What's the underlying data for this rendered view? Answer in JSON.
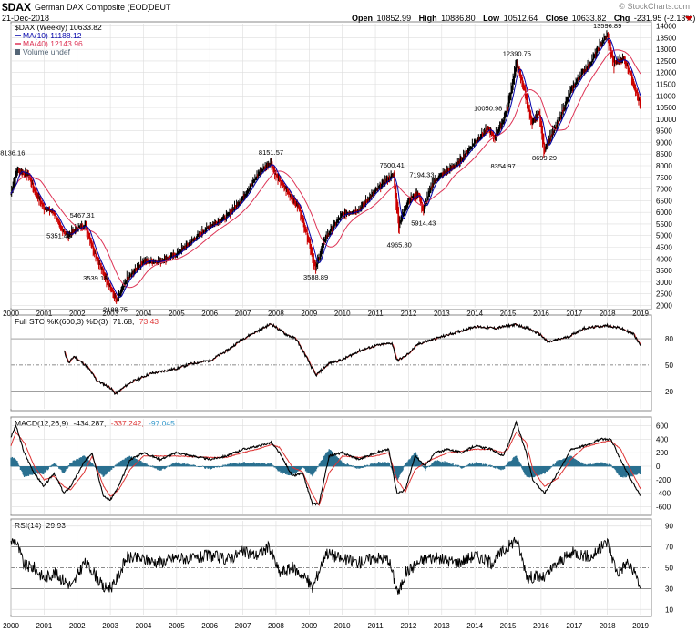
{
  "header": {
    "symbol": "$DAX",
    "name": "German DAX Composite (EOD)",
    "exchange": "DEUT",
    "date": "21-Dec-2018",
    "copyright": "© StockCharts.com",
    "open_label": "Open",
    "open": "10852.99",
    "high_label": "High",
    "high": "10886.80",
    "low_label": "Low",
    "low": "10512.64",
    "close_label": "Close",
    "close": "10633.82",
    "chg_label": "Chg",
    "chg": "-231.95 (-2.13%)"
  },
  "legend": {
    "price": "$DAX (Weekly) 10633.82",
    "ma10": "MA(10) 11188.12",
    "ma40": "MA(40) 12143.96",
    "volume": "Volume undef"
  },
  "indicators": {
    "sto_label": "Full STO %K(600,3) %D(3)",
    "sto_k": "71.68,",
    "sto_d": "73.43",
    "macd_label": "MACD(12,26,9)",
    "macd_v": "-434.287,",
    "macd_sig": "-337.242,",
    "macd_hist": "-97.045",
    "rsi_label": "RSI(14)",
    "rsi_v": "29.93"
  },
  "colors": {
    "price": "#000000",
    "down": "#cc0000",
    "ma10": "#0000aa",
    "ma40": "#dd3355",
    "macd_signal": "#dd3333",
    "histogram": "#2a7090",
    "hist_label": "#3399cc",
    "grid": "#dddddd"
  },
  "chart_data": {
    "type": "line",
    "title": "$DAX German DAX Composite (EOD) DEUT",
    "x_ticks": [
      "2000",
      "2001",
      "2002",
      "2003",
      "2004",
      "2005",
      "2006",
      "2007",
      "2008",
      "2009",
      "2010",
      "2011",
      "2012",
      "2013",
      "2014",
      "2015",
      "2016",
      "2017",
      "2018",
      "2019"
    ],
    "price_ticks": [
      "2000",
      "2500",
      "3000",
      "3500",
      "4000",
      "4500",
      "5000",
      "5500",
      "6000",
      "6500",
      "7000",
      "7500",
      "8000",
      "8500",
      "9000",
      "9500",
      "10000",
      "10500",
      "11000",
      "11500",
      "12000",
      "12500",
      "13000",
      "13500",
      "14000"
    ],
    "ylim": [
      1900,
      14100
    ],
    "series": [
      {
        "name": "$DAX (Weekly)",
        "x": [
          2000.0,
          2000.2,
          2000.55,
          2000.7,
          2001.0,
          2001.3,
          2001.5,
          2001.72,
          2002.0,
          2002.25,
          2002.5,
          2002.75,
          2003.0,
          2003.2,
          2003.5,
          2004.0,
          2004.5,
          2005.0,
          2005.5,
          2006.0,
          2006.5,
          2007.0,
          2007.5,
          2007.85,
          2008.0,
          2008.4,
          2008.7,
          2009.0,
          2009.2,
          2009.5,
          2010.0,
          2010.5,
          2011.0,
          2011.35,
          2011.55,
          2011.72,
          2012.0,
          2012.3,
          2012.45,
          2012.75,
          2013.0,
          2013.5,
          2014.0,
          2014.4,
          2014.6,
          2014.85,
          2015.0,
          2015.27,
          2015.5,
          2015.73,
          2015.95,
          2016.1,
          2016.5,
          2016.9,
          2017.2,
          2017.5,
          2017.8,
          2018.0,
          2018.2,
          2018.5,
          2018.7,
          2018.85,
          2019.0
        ],
        "values": [
          6800,
          7800,
          7600,
          7000,
          6200,
          6000,
          5351,
          5000,
          5300,
          5467,
          4400,
          3539,
          2800,
          2189,
          3100,
          3900,
          3900,
          4200,
          4800,
          5400,
          5800,
          6600,
          7700,
          8152,
          7600,
          6800,
          6200,
          4800,
          3589,
          4900,
          5900,
          6100,
          6900,
          7400,
          7600,
          5500,
          6500,
          6800,
          6100,
          7300,
          7600,
          8100,
          9000,
          9600,
          9200,
          9900,
          10500,
          12391,
          11300,
          9800,
          10300,
          8700,
          9800,
          11200,
          11900,
          12400,
          13200,
          13597,
          12400,
          12600,
          12000,
          11300,
          10634
        ]
      },
      {
        "name": "MA(10)",
        "values": []
      },
      {
        "name": "MA(40)",
        "values": []
      }
    ],
    "annotations": [
      "8136.16",
      "5467.31",
      "5351.48",
      "3539.18",
      "2188.75",
      "8151.57",
      "3588.89",
      "7600.41",
      "7194.33",
      "5914.43",
      "4965.80",
      "10050.98",
      "12390.75",
      "8354.97",
      "8699.29",
      "13596.89"
    ],
    "stochastic": {
      "ticks": [
        "20",
        "50",
        "80"
      ],
      "x": [
        2001.6,
        2001.75,
        2001.9,
        2002.3,
        2002.6,
        2003.0,
        2003.15,
        2003.6,
        2004.2,
        2005.0,
        2005.5,
        2006.0,
        2006.5,
        2007.0,
        2007.6,
        2007.85,
        2008.3,
        2008.6,
        2008.9,
        2009.2,
        2009.6,
        2010.0,
        2010.5,
        2011.0,
        2011.5,
        2011.65,
        2011.9,
        2012.3,
        2012.8,
        2013.5,
        2014.0,
        2014.6,
        2015.2,
        2015.6,
        2016.0,
        2016.2,
        2016.8,
        2017.3,
        2018.0,
        2018.4,
        2018.8,
        2019.0
      ],
      "values": [
        66,
        52,
        60,
        48,
        32,
        24,
        17,
        30,
        40,
        46,
        52,
        55,
        66,
        80,
        92,
        97,
        85,
        80,
        60,
        38,
        52,
        56,
        66,
        72,
        75,
        55,
        60,
        74,
        80,
        88,
        94,
        92,
        96,
        92,
        84,
        76,
        82,
        92,
        95,
        92,
        85,
        72
      ]
    },
    "macd": {
      "ticks": [
        "-600",
        "-400",
        "-200",
        "0",
        "200",
        "400",
        "600"
      ],
      "macd_x": [
        2000.0,
        2000.15,
        2000.4,
        2000.7,
        2001.0,
        2001.3,
        2001.6,
        2001.8,
        2002.2,
        2002.45,
        2002.8,
        2003.0,
        2003.25,
        2003.6,
        2004.0,
        2004.5,
        2005.0,
        2006.0,
        2006.5,
        2007.0,
        2007.5,
        2007.85,
        2008.1,
        2008.5,
        2008.8,
        2009.1,
        2009.3,
        2009.6,
        2010.0,
        2010.5,
        2011.0,
        2011.4,
        2011.65,
        2011.9,
        2012.2,
        2012.5,
        2012.8,
        2013.2,
        2013.6,
        2014.0,
        2014.5,
        2014.85,
        2015.0,
        2015.25,
        2015.55,
        2015.75,
        2016.1,
        2016.5,
        2016.9,
        2017.3,
        2017.8,
        2018.1,
        2018.4,
        2018.7,
        2019.0
      ],
      "macd_values": [
        430,
        600,
        200,
        -100,
        -300,
        -100,
        -400,
        -300,
        50,
        200,
        -450,
        -500,
        -300,
        100,
        200,
        100,
        200,
        100,
        150,
        250,
        300,
        350,
        200,
        -150,
        -100,
        -560,
        -550,
        150,
        200,
        100,
        200,
        250,
        -400,
        -350,
        150,
        0,
        200,
        250,
        200,
        300,
        250,
        150,
        300,
        650,
        200,
        -200,
        -400,
        -100,
        250,
        300,
        400,
        400,
        100,
        -200,
        -434
      ],
      "signal_values": [
        300,
        500,
        350,
        0,
        -200,
        -150,
        -300,
        -350,
        -100,
        150,
        -300,
        -450,
        -350,
        -50,
        150,
        150,
        150,
        130,
        130,
        200,
        260,
        320,
        280,
        -20,
        -80,
        -420,
        -580,
        -100,
        150,
        130,
        150,
        200,
        -200,
        -380,
        -50,
        50,
        120,
        200,
        220,
        250,
        250,
        200,
        250,
        500,
        350,
        -50,
        -300,
        -180,
        100,
        280,
        350,
        380,
        250,
        -50,
        -337
      ]
    },
    "rsi": {
      "ticks": [
        "10",
        "30",
        "50",
        "70",
        "90"
      ],
      "x": [
        2000.0,
        2000.15,
        2000.4,
        2000.7,
        2001.0,
        2001.3,
        2001.6,
        2001.85,
        2002.2,
        2002.45,
        2002.8,
        2003.1,
        2003.5,
        2004.0,
        2004.5,
        2005.0,
        2005.5,
        2006.0,
        2006.5,
        2007.0,
        2007.4,
        2007.8,
        2008.1,
        2008.5,
        2008.9,
        2009.1,
        2009.5,
        2010.0,
        2010.5,
        2011.0,
        2011.4,
        2011.6,
        2011.7,
        2011.9,
        2012.3,
        2012.6,
        2013.0,
        2013.5,
        2014.0,
        2014.5,
        2015.0,
        2015.25,
        2015.6,
        2015.8,
        2016.1,
        2016.5,
        2017.0,
        2017.5,
        2018.0,
        2018.3,
        2018.6,
        2018.9,
        2019.0
      ],
      "values": [
        75,
        76,
        52,
        50,
        40,
        45,
        38,
        32,
        55,
        48,
        30,
        33,
        60,
        58,
        55,
        60,
        58,
        62,
        58,
        65,
        62,
        70,
        45,
        50,
        40,
        30,
        65,
        58,
        55,
        60,
        58,
        35,
        25,
        45,
        55,
        60,
        58,
        55,
        62,
        55,
        70,
        78,
        40,
        42,
        40,
        55,
        65,
        60,
        75,
        45,
        55,
        40,
        30
      ]
    }
  }
}
